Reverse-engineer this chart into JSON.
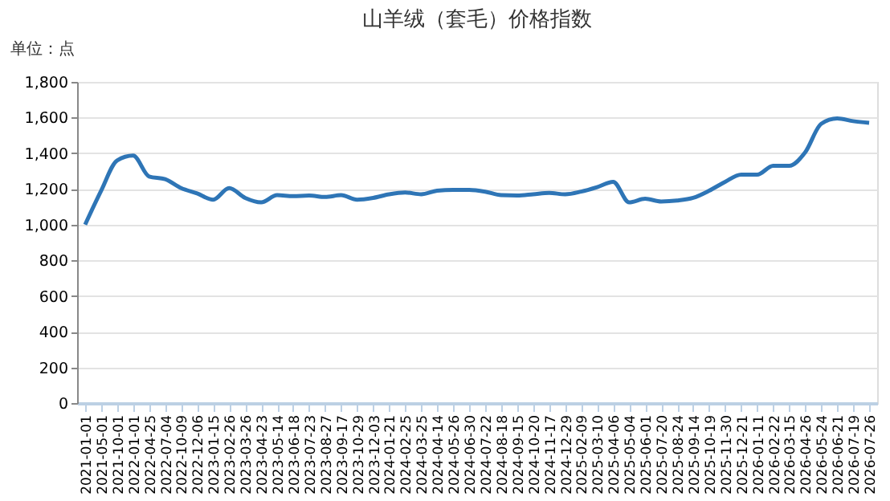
{
  "chart_data": {
    "type": "line",
    "title": "山羊绒（套毛）价格指数",
    "ylabel": "单位：点",
    "categories": [
      "2021-01-01",
      "2021-05-01",
      "2021-10-01",
      "2022-01-01",
      "2022-04-25",
      "2022-07-04",
      "2022-10-09",
      "2022-12-06",
      "2023-01-15",
      "2023-02-26",
      "2023-03-26",
      "2023-04-23",
      "2023-05-14",
      "2023-06-18",
      "2023-07-23",
      "2023-08-27",
      "2023-09-17",
      "2023-10-29",
      "2023-12-03",
      "2024-01-21",
      "2024-02-25",
      "2024-03-25",
      "2024-04-14",
      "2024-05-26",
      "2024-06-30",
      "2024-07-22",
      "2024-08-18",
      "2024-09-15",
      "2024-10-20",
      "2024-11-17",
      "2024-12-29",
      "2025-02-09",
      "2025-03-10",
      "2025-04-06",
      "2025-05-04",
      "2025-06-01",
      "2025-07-20",
      "2025-08-24",
      "2025-09-14",
      "2025-10-19",
      "2025-11-30",
      "2025-12-21",
      "2026-01-11",
      "2026-02-22",
      "2026-03-15",
      "2026-04-26",
      "2026-05-24",
      "2026-06-21",
      "2026-07-19",
      "2026-07-26"
    ],
    "series": [
      {
        "color": "#2e75b6",
        "values": [
          1000,
          1190,
          1360,
          1387,
          1270,
          1255,
          1205,
          1175,
          1140,
          1205,
          1150,
          1125,
          1165,
          1160,
          1163,
          1155,
          1165,
          1140,
          1150,
          1170,
          1180,
          1170,
          1190,
          1195,
          1195,
          1185,
          1165,
          1163,
          1170,
          1178,
          1170,
          1185,
          1210,
          1240,
          1125,
          1145,
          1130,
          1135,
          1150,
          1190,
          1240,
          1280,
          1280,
          1330,
          1330,
          1405,
          1565,
          1595,
          1580,
          1570
        ]
      }
    ],
    "ylim": [
      0,
      1800
    ],
    "yticks": [
      {
        "value": 0,
        "label": "0"
      },
      {
        "value": 200,
        "label": "200"
      },
      {
        "value": 400,
        "label": "400"
      },
      {
        "value": 600,
        "label": "600"
      },
      {
        "value": 800,
        "label": "800"
      },
      {
        "value": 1000,
        "label": "1,000"
      },
      {
        "value": 1200,
        "label": "1,200"
      },
      {
        "value": 1400,
        "label": "1,400"
      },
      {
        "value": 1600,
        "label": "1,600"
      },
      {
        "value": 1800,
        "label": "1,800"
      }
    ],
    "grid": "y",
    "legend": false,
    "marker": "none",
    "line_style": "solid"
  }
}
